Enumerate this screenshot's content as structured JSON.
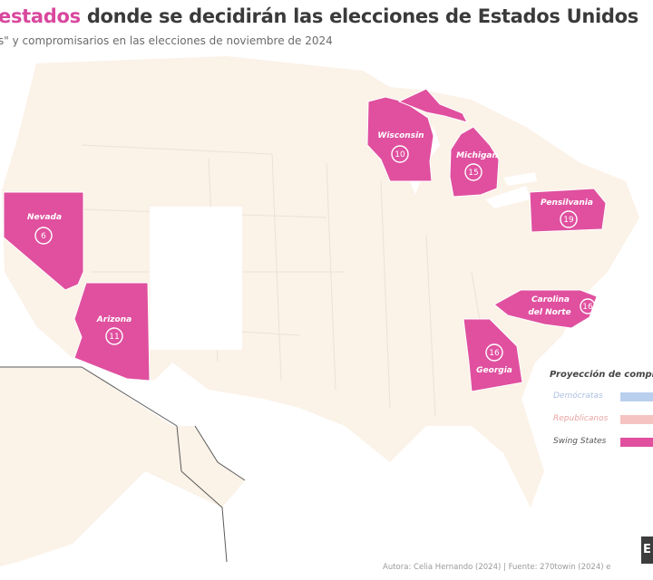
{
  "header": {
    "title_accent": "estados",
    "title_rest": " donde se decidirán las elecciones de Estados Unidos",
    "subtitle": "s\" y compromisarios en las elecciones de noviembre de 2024"
  },
  "map": {
    "swing_color": "#e0509f",
    "base_color": "#fbf2e8",
    "border_color": "#ece2d6",
    "states": [
      {
        "name": "Wisconsin",
        "electoral_votes": "10"
      },
      {
        "name": "Michigan",
        "electoral_votes": "15"
      },
      {
        "name": "Pensilvania",
        "electoral_votes": "19"
      },
      {
        "name": "Nevada",
        "electoral_votes": "6"
      },
      {
        "name": "Arizona",
        "electoral_votes": "11"
      },
      {
        "name": "Carolina del Norte",
        "name_line1": "Carolina",
        "name_line2": "del Norte",
        "electoral_votes": "16"
      },
      {
        "name": "Georgia",
        "electoral_votes": "16"
      }
    ]
  },
  "legend": {
    "title": "Proyección de compr",
    "items": [
      {
        "label": "Demócratas",
        "color": "#b9cfee"
      },
      {
        "label": "Republicanos",
        "color": "#f6c3c3"
      },
      {
        "label": "Swing States",
        "color": "#e0509f"
      }
    ]
  },
  "footer": {
    "credits": "Autora: Celia Hernando (2024) | Fuente: 270towin (2024) e",
    "logo_letter": "E"
  }
}
